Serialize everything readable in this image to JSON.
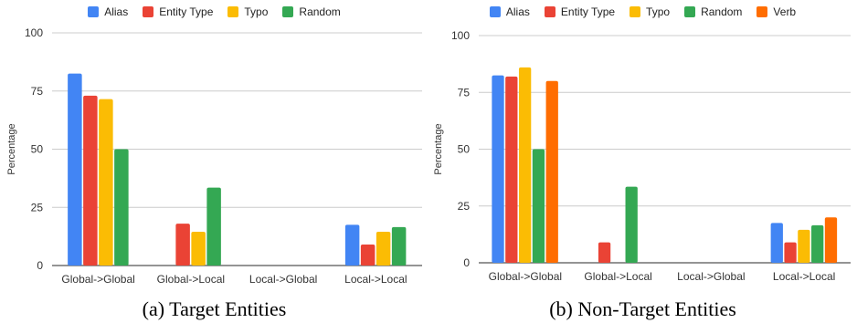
{
  "colors": {
    "Alias": "#4285F4",
    "Entity Type": "#EA4335",
    "Typo": "#FBBC04",
    "Random": "#34A853",
    "Verb": "#FF6D01",
    "grid": "#cccccc",
    "axis": "#555555"
  },
  "chart_data": [
    {
      "type": "bar",
      "caption": "(a) Target Entities",
      "ylabel": "Percentage",
      "ylim": [
        0,
        100
      ],
      "yticks": [
        "0",
        "25",
        "50",
        "75",
        "100"
      ],
      "categories": [
        "Global->Global",
        "Global->Local",
        "Local->Global",
        "Local->Local"
      ],
      "series": [
        {
          "name": "Alias",
          "values": [
            82.5,
            0,
            0,
            17.5
          ]
        },
        {
          "name": "Entity Type",
          "values": [
            73,
            18,
            0,
            9
          ]
        },
        {
          "name": "Typo",
          "values": [
            71.5,
            14.5,
            0,
            14.5
          ]
        },
        {
          "name": "Random",
          "values": [
            50,
            33.5,
            0,
            16.5
          ]
        }
      ],
      "legend": "top",
      "grid": true
    },
    {
      "type": "bar",
      "caption": "(b) Non-Target Entities",
      "ylabel": "Percentage",
      "ylim": [
        0,
        100
      ],
      "yticks": [
        "0",
        "25",
        "50",
        "75",
        "100"
      ],
      "categories": [
        "Global->Global",
        "Global->Local",
        "Local->Global",
        "Local->Local"
      ],
      "series": [
        {
          "name": "Alias",
          "values": [
            82.5,
            0,
            0,
            17.5
          ]
        },
        {
          "name": "Entity Type",
          "values": [
            82,
            9,
            0,
            9
          ]
        },
        {
          "name": "Typo",
          "values": [
            86,
            0,
            0,
            14.5
          ]
        },
        {
          "name": "Random",
          "values": [
            50,
            33.5,
            0,
            16.5
          ]
        },
        {
          "name": "Verb",
          "values": [
            80,
            0,
            0,
            20
          ]
        }
      ],
      "legend": "top",
      "grid": true
    }
  ]
}
